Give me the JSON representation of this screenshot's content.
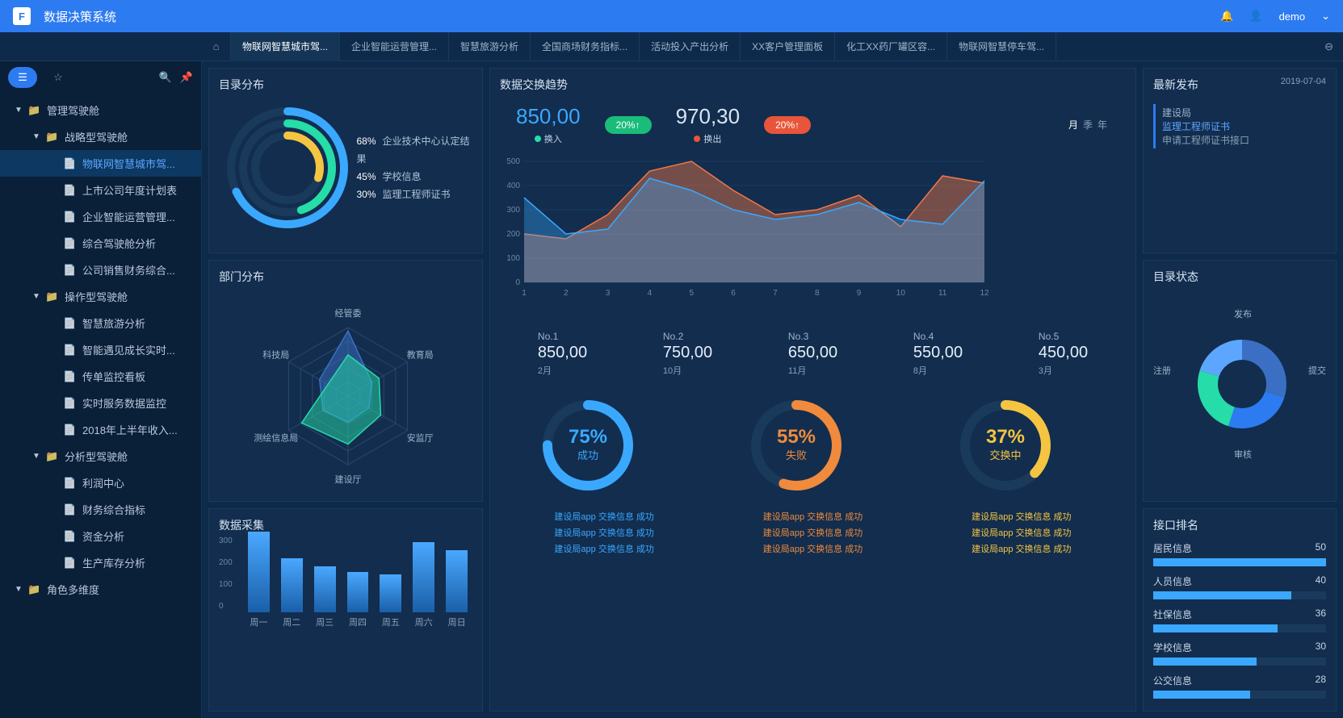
{
  "app_title": "数据决策系统",
  "user": "demo",
  "tabs": [
    "物联网智慧城市驾...",
    "企业智能运营管理...",
    "智慧旅游分析",
    "全国商场财务指标...",
    "活动投入产出分析",
    "XX客户管理面板",
    "化工XX药厂罐区容...",
    "物联网智慧停车驾..."
  ],
  "active_tab": 0,
  "sidebar": [
    {
      "lvl": 1,
      "caret": "▼",
      "icon": "📁",
      "label": "管理驾驶舱"
    },
    {
      "lvl": 2,
      "caret": "▼",
      "icon": "📁",
      "label": "战略型驾驶舱"
    },
    {
      "lvl": 3,
      "caret": "",
      "icon": "📄",
      "label": "物联网智慧城市驾...",
      "active": true
    },
    {
      "lvl": 3,
      "caret": "",
      "icon": "📄",
      "label": "上市公司年度计划表"
    },
    {
      "lvl": 3,
      "caret": "",
      "icon": "📄",
      "label": "企业智能运营管理..."
    },
    {
      "lvl": 3,
      "caret": "",
      "icon": "📄",
      "label": "综合驾驶舱分析"
    },
    {
      "lvl": 3,
      "caret": "",
      "icon": "📄",
      "label": "公司销售财务综合..."
    },
    {
      "lvl": 2,
      "caret": "▼",
      "icon": "📁",
      "label": "操作型驾驶舱"
    },
    {
      "lvl": 3,
      "caret": "",
      "icon": "📄",
      "label": "智慧旅游分析"
    },
    {
      "lvl": 3,
      "caret": "",
      "icon": "📄",
      "label": "智能遇见成长实时..."
    },
    {
      "lvl": 3,
      "caret": "",
      "icon": "📄",
      "label": "传单监控看板"
    },
    {
      "lvl": 3,
      "caret": "",
      "icon": "📄",
      "label": "实时服务数据监控"
    },
    {
      "lvl": 3,
      "caret": "",
      "icon": "📄",
      "label": "2018年上半年收入..."
    },
    {
      "lvl": 2,
      "caret": "▼",
      "icon": "📁",
      "label": "分析型驾驶舱"
    },
    {
      "lvl": 3,
      "caret": "",
      "icon": "📄",
      "label": "利润中心"
    },
    {
      "lvl": 3,
      "caret": "",
      "icon": "📄",
      "label": "财务综合指标"
    },
    {
      "lvl": 3,
      "caret": "",
      "icon": "📄",
      "label": "资金分析"
    },
    {
      "lvl": 3,
      "caret": "",
      "icon": "📄",
      "label": "生产库存分析"
    },
    {
      "lvl": 1,
      "caret": "▼",
      "icon": "📁",
      "label": "角色多维度"
    }
  ],
  "catalog": {
    "title": "目录分布",
    "arcs": [
      {
        "pct": 68,
        "label": "企业技术中心认定结果",
        "color": "#3aa8ff"
      },
      {
        "pct": 45,
        "label": "学校信息",
        "color": "#26dca8"
      },
      {
        "pct": 30,
        "label": "监理工程师证书",
        "color": "#f5c542"
      }
    ]
  },
  "dept": {
    "title": "部门分布",
    "axes": [
      "经管委",
      "教育局",
      "安监厅",
      "建设厅",
      "测绘信息局",
      "科技局"
    ],
    "series": [
      {
        "color": "#3a6fc4",
        "fill": "rgba(58,111,196,0.5)",
        "values": [
          95,
          40,
          35,
          38,
          42,
          48
        ]
      },
      {
        "color": "#26dca8",
        "fill": "rgba(38,220,168,0.5)",
        "values": [
          60,
          52,
          55,
          70,
          78,
          34
        ]
      }
    ]
  },
  "collect": {
    "title": "数据采集",
    "ymax": 300,
    "ystep": 100,
    "categories": [
      "周一",
      "周二",
      "周三",
      "周四",
      "周五",
      "周六",
      "周日"
    ],
    "values": [
      300,
      200,
      170,
      150,
      140,
      260,
      230
    ],
    "bar_color_top": "#4aa8ff",
    "bar_color_bot": "#1a5fa8"
  },
  "trend": {
    "title": "数据交换趋势",
    "in_val": "850,00",
    "in_badge": "20%↑",
    "out_val": "970,30",
    "out_badge": "20%↑",
    "in_label": "换入",
    "out_label": "换出",
    "time_labels": [
      "月",
      "季",
      "年"
    ],
    "time_active": 0,
    "yticks": [
      0,
      100,
      200,
      300,
      400,
      500
    ],
    "xticks": [
      1,
      2,
      3,
      4,
      5,
      6,
      7,
      8,
      9,
      10,
      11,
      12
    ],
    "series_in": {
      "color": "#3aa8ff",
      "fill": "rgba(58,168,255,0.35)",
      "points": [
        350,
        200,
        220,
        430,
        380,
        300,
        260,
        280,
        330,
        260,
        240,
        420
      ]
    },
    "series_out": {
      "color": "#f07848",
      "fill": "rgba(240,120,72,0.45)",
      "points": [
        200,
        180,
        280,
        460,
        500,
        380,
        280,
        300,
        360,
        230,
        440,
        410
      ]
    },
    "top5": [
      {
        "no": "No.1",
        "v": "850,00",
        "m": "2月"
      },
      {
        "no": "No.2",
        "v": "750,00",
        "m": "10月"
      },
      {
        "no": "No.3",
        "v": "650,00",
        "m": "11月"
      },
      {
        "no": "No.4",
        "v": "550,00",
        "m": "8月"
      },
      {
        "no": "No.5",
        "v": "450,00",
        "m": "3月"
      }
    ],
    "gauges": [
      {
        "pct": 75,
        "label": "成功",
        "color": "#3aa8ff"
      },
      {
        "pct": 55,
        "label": "失败",
        "color": "#f08a3c"
      },
      {
        "pct": 37,
        "label": "交换中",
        "color": "#f5c542"
      }
    ],
    "gauge_logs": [
      "建设局app 交换信息 成功",
      "建设局app 交换信息 成功",
      "建设局app 交换信息 成功"
    ]
  },
  "latest": {
    "title": "最新发布",
    "date": "2019-07-04",
    "item": {
      "org": "建设局",
      "name": "监理工程师证书",
      "desc": "申请工程师证书接口"
    }
  },
  "status": {
    "title": "目录状态",
    "labels": [
      "发布",
      "提交",
      "审核",
      "注册"
    ],
    "slices": [
      {
        "color": "#3a6fc4",
        "pct": 30
      },
      {
        "color": "#2d7bf0",
        "pct": 25
      },
      {
        "color": "#26dca8",
        "pct": 25
      },
      {
        "color": "#5da6ff",
        "pct": 20
      }
    ]
  },
  "rank": {
    "title": "接口排名",
    "items": [
      {
        "name": "居民信息",
        "val": 50,
        "max": 50
      },
      {
        "name": "人员信息",
        "val": 40,
        "max": 50
      },
      {
        "name": "社保信息",
        "val": 36,
        "max": 50
      },
      {
        "name": "学校信息",
        "val": 30,
        "max": 50
      },
      {
        "name": "公交信息",
        "val": 28,
        "max": 50
      }
    ]
  }
}
